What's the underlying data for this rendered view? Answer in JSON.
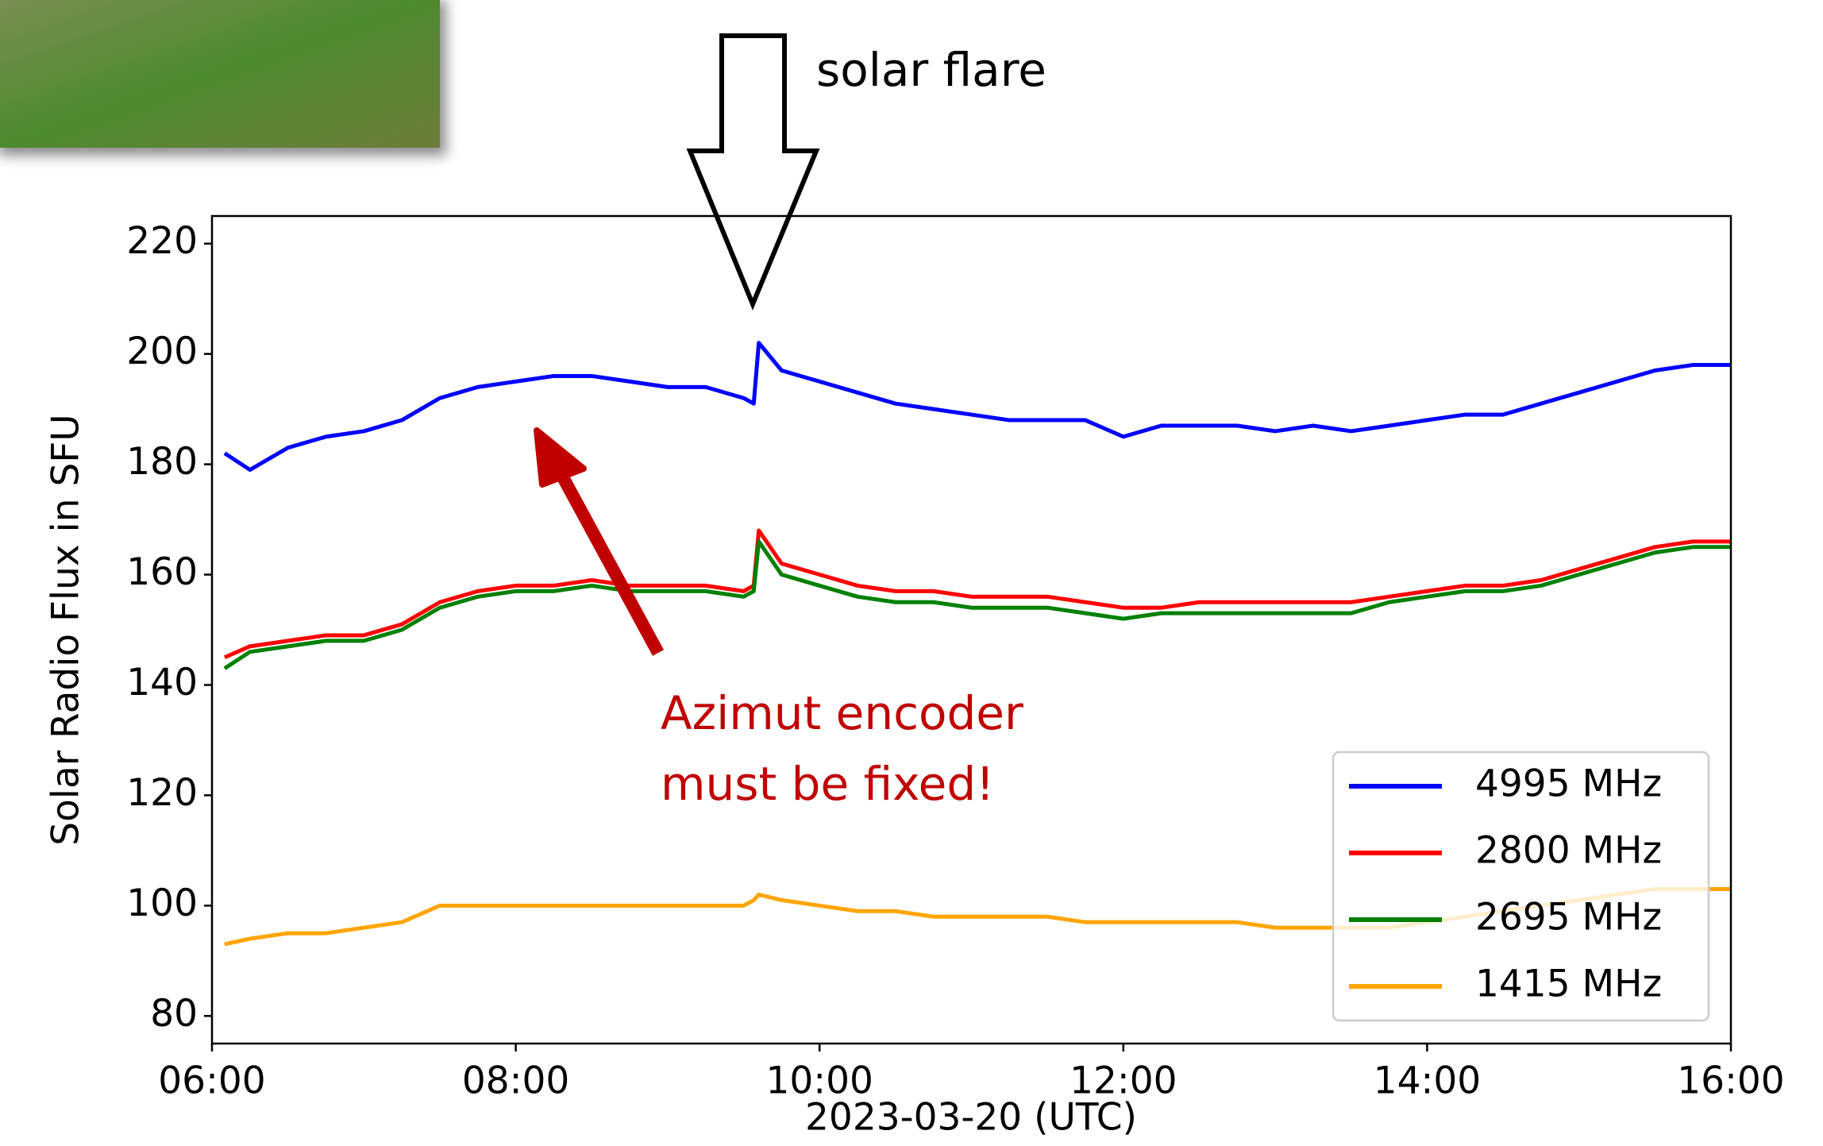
{
  "chart_data": {
    "type": "line",
    "annotations": {
      "flare": "solar flare",
      "encoder_line1": "Azimut encoder",
      "encoder_line2": "must be fixed!"
    },
    "xlabel": "2023-03-20 (UTC)",
    "ylabel": "Solar Radio Flux in SFU",
    "x": [
      "06:05",
      "06:15",
      "06:30",
      "06:45",
      "07:00",
      "07:15",
      "07:30",
      "07:45",
      "08:00",
      "08:15",
      "08:30",
      "08:45",
      "09:00",
      "09:15",
      "09:30",
      "09:34",
      "09:36",
      "09:45",
      "10:00",
      "10:15",
      "10:30",
      "10:45",
      "11:00",
      "11:15",
      "11:30",
      "11:45",
      "12:00",
      "12:15",
      "12:30",
      "12:45",
      "13:00",
      "13:15",
      "13:30",
      "13:45",
      "14:00",
      "14:15",
      "14:30",
      "14:45",
      "15:00",
      "15:15",
      "15:30",
      "15:45",
      "16:00"
    ],
    "series": [
      {
        "name": "4995 MHz",
        "color": "#0000ff",
        "values": [
          182,
          179,
          183,
          185,
          186,
          188,
          192,
          194,
          195,
          196,
          196,
          195,
          194,
          194,
          192,
          191,
          202,
          197,
          195,
          193,
          191,
          190,
          189,
          188,
          188,
          188,
          185,
          187,
          187,
          187,
          186,
          187,
          186,
          187,
          188,
          189,
          189,
          191,
          193,
          195,
          197,
          198,
          198
        ]
      },
      {
        "name": "2800 MHz",
        "color": "#ff0000",
        "values": [
          145,
          147,
          148,
          149,
          149,
          151,
          155,
          157,
          158,
          158,
          159,
          158,
          158,
          158,
          157,
          158,
          168,
          162,
          160,
          158,
          157,
          157,
          156,
          156,
          156,
          155,
          154,
          154,
          155,
          155,
          155,
          155,
          155,
          156,
          157,
          158,
          158,
          159,
          161,
          163,
          165,
          166,
          166
        ]
      },
      {
        "name": "2695 MHz",
        "color": "#008000",
        "values": [
          143,
          146,
          147,
          148,
          148,
          150,
          154,
          156,
          157,
          157,
          158,
          157,
          157,
          157,
          156,
          157,
          166,
          160,
          158,
          156,
          155,
          155,
          154,
          154,
          154,
          153,
          152,
          153,
          153,
          153,
          153,
          153,
          153,
          155,
          156,
          157,
          157,
          158,
          160,
          162,
          164,
          165,
          165
        ]
      },
      {
        "name": "1415 MHz",
        "color": "#ffa500",
        "values": [
          93,
          94,
          95,
          95,
          96,
          97,
          100,
          100,
          100,
          100,
          100,
          100,
          100,
          100,
          100,
          101,
          102,
          101,
          100,
          99,
          99,
          98,
          98,
          98,
          98,
          97,
          97,
          97,
          97,
          97,
          96,
          96,
          96,
          96,
          97,
          98,
          99,
          100,
          101,
          102,
          103,
          103,
          103
        ]
      }
    ],
    "xlim": [
      "06:00",
      "16:00"
    ],
    "xticks": [
      "06:00",
      "08:00",
      "10:00",
      "12:00",
      "14:00",
      "16:00"
    ],
    "ylim": [
      75,
      225
    ],
    "yticks": [
      80,
      100,
      120,
      140,
      160,
      180,
      200,
      220
    ],
    "legend": "lower right"
  }
}
